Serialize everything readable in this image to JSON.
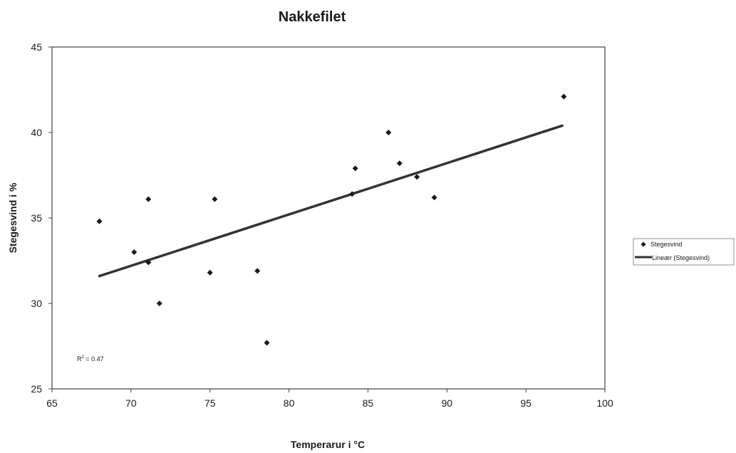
{
  "chart_data": {
    "type": "scatter",
    "title": "Nakkefilet",
    "xlabel": "Temperarur i °C",
    "ylabel": "Stegesvind i %",
    "xlim": [
      65,
      100
    ],
    "ylim": [
      25,
      45
    ],
    "xticks": [
      65,
      70,
      75,
      80,
      85,
      90,
      95,
      100
    ],
    "yticks": [
      25,
      30,
      35,
      40,
      45
    ],
    "grid": false,
    "legend_position": "right",
    "series": [
      {
        "name": "Stegesvind",
        "marker": "diamond",
        "color": "#1a1a1a",
        "points": [
          {
            "x": 68.0,
            "y": 34.8
          },
          {
            "x": 70.2,
            "y": 33.0
          },
          {
            "x": 71.1,
            "y": 36.1
          },
          {
            "x": 71.1,
            "y": 32.4
          },
          {
            "x": 71.8,
            "y": 30.0
          },
          {
            "x": 75.0,
            "y": 31.8
          },
          {
            "x": 75.3,
            "y": 36.1
          },
          {
            "x": 78.0,
            "y": 31.9
          },
          {
            "x": 78.6,
            "y": 27.7
          },
          {
            "x": 84.0,
            "y": 36.4
          },
          {
            "x": 84.2,
            "y": 37.9
          },
          {
            "x": 86.3,
            "y": 40.0
          },
          {
            "x": 87.0,
            "y": 38.2
          },
          {
            "x": 88.1,
            "y": 37.4
          },
          {
            "x": 89.2,
            "y": 36.2
          },
          {
            "x": 97.4,
            "y": 42.1
          }
        ]
      }
    ],
    "trendline": {
      "name": "Lineær (Stegesvind)",
      "type": "linear",
      "color": "#333333",
      "start": {
        "x": 68.0,
        "y": 31.6
      },
      "end": {
        "x": 97.3,
        "y": 40.4
      }
    },
    "annotation": {
      "text_main": "R",
      "text_sup": "2",
      "text_tail": " = 0.47"
    }
  }
}
